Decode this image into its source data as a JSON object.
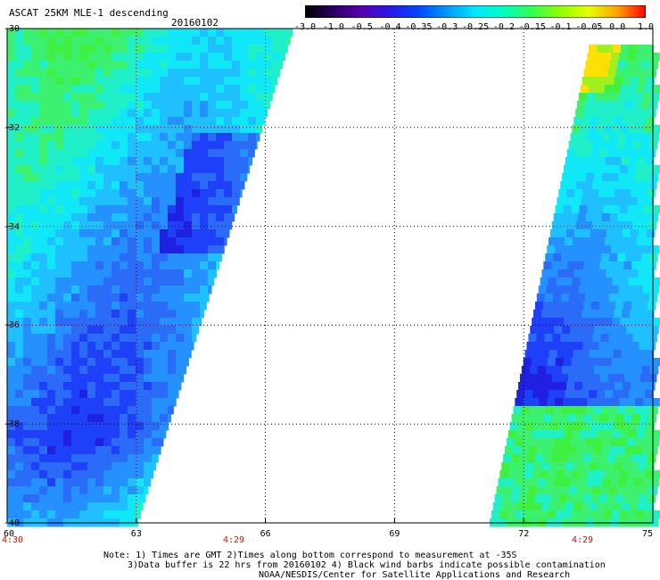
{
  "header": {
    "title": "ASCAT 25KM MLE-1 descending",
    "date": "20160102"
  },
  "colorbar": {
    "labels": [
      "-3.0",
      "-1.0",
      "-0.5",
      "-0.4",
      "-0.35",
      "-0.3",
      "-0.25",
      "-0.2",
      "-0.15",
      "-0.1",
      "-0.05",
      "0.0",
      "1.0"
    ],
    "colors": [
      "#000000",
      "#2a0060",
      "#5a00b0",
      "#2a18e8",
      "#0048ff",
      "#0098ff",
      "#00e8ff",
      "#00ffc0",
      "#30ff50",
      "#90ff00",
      "#e8ff00",
      "#ffa000",
      "#ff0000"
    ]
  },
  "map": {
    "lon_ticks": [
      "60",
      "63",
      "66",
      "69",
      "72",
      "75"
    ],
    "lat_ticks": [
      "-30",
      "-32",
      "-34",
      "-36",
      "-38",
      "-40"
    ],
    "time_labels": [
      "4:30",
      "4:29",
      "4:29"
    ]
  },
  "footer": {
    "note_line1": "Note: 1) Times are GMT 2)Times along bottom correspond to measurement at -35S",
    "note_line2": "3)Data buffer is 22 hrs from 20160102 4) Black wind barbs indicate possible contamination",
    "credit": "NOAA/NESDIS/Center for Satellite Applications and Research"
  }
}
